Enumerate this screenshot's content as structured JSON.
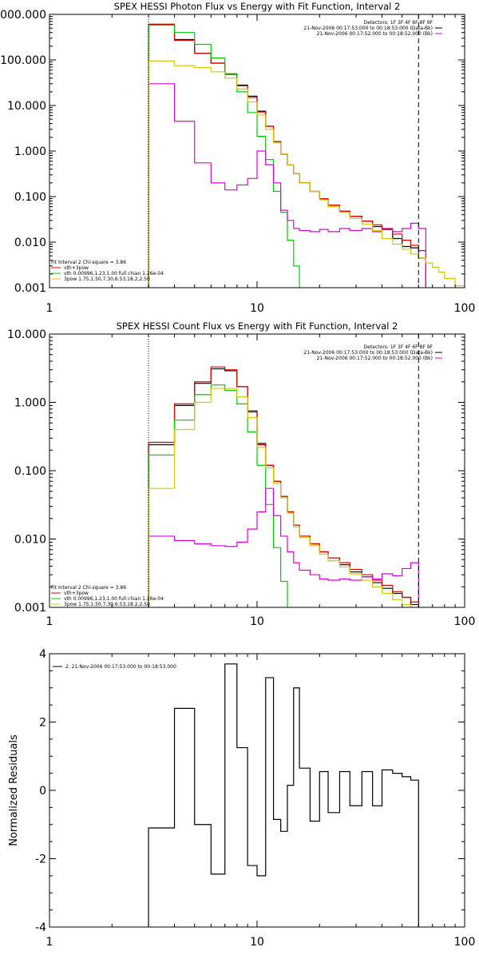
{
  "colors": {
    "black": "#000000",
    "red": "#e00000",
    "green": "#00cc00",
    "magenta": "#dd00dd",
    "yellow": "#d8c800"
  },
  "chart_data": [
    {
      "type": "line",
      "id": "photon",
      "title": "SPEX HESSI Photon Flux vs Energy with Fit Function, Interval 2",
      "xscale": "log",
      "yscale": "log",
      "xlim": [
        1,
        100
      ],
      "ylim": [
        0.001,
        1000
      ],
      "xticks": [
        {
          "v": 1,
          "label": "1"
        },
        {
          "v": 10,
          "label": "10"
        },
        {
          "v": 100,
          "label": "100"
        }
      ],
      "yticks": [
        {
          "v": 0.001,
          "label": "0.001"
        },
        {
          "v": 0.01,
          "label": "0.010"
        },
        {
          "v": 0.1,
          "label": "0.100"
        },
        {
          "v": 1,
          "label": "1.000"
        },
        {
          "v": 10,
          "label": "10.000"
        },
        {
          "v": 100,
          "label": "100.000"
        },
        {
          "v": 1000,
          "label": "1000.000"
        }
      ],
      "edges": [
        3,
        4,
        5,
        6,
        7,
        8,
        9,
        10,
        11,
        12,
        13,
        14,
        15,
        16,
        18,
        20,
        22,
        25,
        28,
        32,
        36,
        40,
        45,
        50,
        55,
        60,
        65,
        70,
        75,
        80,
        90,
        100
      ],
      "vlines": [
        {
          "x": 3,
          "style": "dotted"
        },
        {
          "x": 60,
          "style": "dashed"
        }
      ],
      "header": [
        "Detectors: 1F 3F 4F 6F 8F 9F",
        "21-Nov-2006 00:17:53.000 to 00:18:53.000 (Data-Bk)",
        "21-Nov-2006 00:17:52.000 to 00:18:52.000 (Bk)"
      ],
      "legend": [
        {
          "text": "Fit Interval  2   Chi-square = 3.86",
          "color": "black"
        },
        {
          "text": "vth+3pow",
          "color": "red"
        },
        {
          "text": "vth 0.00996,1.23,1.00  full chian 1.26e-04",
          "color": "green"
        },
        {
          "text": "3pow 1.75,1.50,7.30,6.53,18.2,2.50",
          "color": "yellow"
        }
      ],
      "series": [
        {
          "color": "black",
          "values": [
            600,
            280,
            140,
            85,
            50,
            28,
            16,
            7.5,
            3.5,
            1.6,
            0.85,
            0.5,
            0.32,
            0.2,
            0.13,
            0.09,
            0.065,
            0.048,
            0.037,
            0.029,
            0.022,
            0.019,
            0.012,
            0.008,
            0.0075,
            0.0045
          ]
        },
        {
          "color": "red",
          "values": [
            610,
            270,
            140,
            85,
            48,
            27,
            15,
            7.2,
            3.5,
            1.6,
            0.85,
            0.5,
            0.32,
            0.2,
            0.13,
            0.09,
            0.065,
            0.048,
            0.037,
            0.029,
            0.024,
            0.019,
            0.015,
            0.011,
            0.0085,
            0.0065
          ]
        },
        {
          "color": "green",
          "values": [
            580,
            400,
            220,
            110,
            50,
            20,
            7,
            2.1,
            0.65,
            0.13,
            0.045,
            0.011,
            0.003,
            0.0008
          ]
        },
        {
          "color": "magenta",
          "values": [
            30,
            4.5,
            0.55,
            0.2,
            0.14,
            0.18,
            0.25,
            1.0,
            0.5,
            0.2,
            0.05,
            0.03,
            0.02,
            0.018,
            0.017,
            0.019,
            0.017,
            0.02,
            0.018,
            0.02,
            0.017,
            0.02,
            0.017,
            0.02,
            0.026,
            0.02
          ]
        },
        {
          "color": "yellow",
          "values": [
            95,
            75,
            68,
            55,
            40,
            23,
            12,
            6.2,
            3.0,
            1.5,
            0.85,
            0.5,
            0.32,
            0.2,
            0.13,
            0.085,
            0.06,
            0.045,
            0.033,
            0.025,
            0.018,
            0.012,
            0.009,
            0.007,
            0.0055,
            0.0045,
            0.0035,
            0.0028,
            0.0022,
            0.0016,
            0.0011
          ]
        }
      ]
    },
    {
      "type": "line",
      "id": "count",
      "title": "SPEX HESSI Count Flux vs Energy with Fit Function, Interval 2",
      "xscale": "log",
      "yscale": "log",
      "xlim": [
        1,
        100
      ],
      "ylim": [
        0.001,
        10
      ],
      "xticks": [
        {
          "v": 1,
          "label": "1"
        },
        {
          "v": 10,
          "label": "10"
        },
        {
          "v": 100,
          "label": "100"
        }
      ],
      "yticks": [
        {
          "v": 0.001,
          "label": "0.001"
        },
        {
          "v": 0.01,
          "label": "0.010"
        },
        {
          "v": 0.1,
          "label": "0.100"
        },
        {
          "v": 1,
          "label": "1.000"
        },
        {
          "v": 10,
          "label": "10.000"
        }
      ],
      "edges": [
        3,
        4,
        5,
        6,
        7,
        8,
        9,
        10,
        11,
        12,
        13,
        14,
        15,
        16,
        18,
        20,
        22,
        25,
        28,
        32,
        36,
        40,
        45,
        50,
        55,
        60
      ],
      "vlines": [
        {
          "x": 3,
          "style": "dotted"
        },
        {
          "x": 60,
          "style": "dashed"
        }
      ],
      "header": [
        "Detectors: 1F 3F 4F 6F 8F 9F",
        "21-Nov-2006 00:17:53.000 to 00:18:53.000 (Data-Bk)",
        "21-Nov-2006 00:17:52.000 to 00:18:52.000 (Bk)"
      ],
      "legend": [
        {
          "text": "Fit Interval  2   Chi-square = 3.86",
          "color": "black"
        },
        {
          "text": "vth+3pow",
          "color": "red"
        },
        {
          "text": "vth 0.00996,1.23,1.00  full chian 1.26e-04",
          "color": "green"
        },
        {
          "text": "3pow 1.75,1.50,7.30,6.53,18.2,2.50",
          "color": "yellow"
        }
      ],
      "series": [
        {
          "color": "black",
          "values": [
            0.24,
            0.9,
            1.9,
            3.1,
            2.9,
            1.7,
            0.75,
            0.25,
            0.12,
            0.07,
            0.042,
            0.025,
            0.016,
            0.011,
            0.0085,
            0.0065,
            0.0053,
            0.0042,
            0.0033,
            0.0028,
            0.0023,
            0.0019,
            0.0016,
            0.0014,
            0.0011
          ]
        },
        {
          "color": "red",
          "values": [
            0.26,
            0.95,
            2.0,
            3.3,
            3.0,
            1.7,
            0.72,
            0.24,
            0.12,
            0.07,
            0.042,
            0.025,
            0.016,
            0.011,
            0.0085,
            0.0065,
            0.0053,
            0.0045,
            0.0036,
            0.003,
            0.0025,
            0.0021,
            0.0017,
            0.0014,
            0.0012
          ]
        },
        {
          "color": "green",
          "values": [
            0.17,
            0.55,
            1.3,
            1.8,
            1.5,
            0.95,
            0.37,
            0.12,
            0.032,
            0.0075,
            0.0024,
            0.00085,
            0.0003
          ]
        },
        {
          "color": "magenta",
          "values": [
            0.011,
            0.0095,
            0.0085,
            0.008,
            0.0078,
            0.009,
            0.014,
            0.025,
            0.055,
            0.022,
            0.011,
            0.0065,
            0.0045,
            0.0035,
            0.003,
            0.0026,
            0.0025,
            0.0026,
            0.0025,
            0.0028,
            0.0026,
            0.0031,
            0.0029,
            0.0037,
            0.0045
          ]
        },
        {
          "color": "yellow",
          "values": [
            0.055,
            0.4,
            1.0,
            1.6,
            1.6,
            1.2,
            0.6,
            0.22,
            0.11,
            0.065,
            0.04,
            0.024,
            0.015,
            0.0105,
            0.008,
            0.006,
            0.0048,
            0.0039,
            0.0031,
            0.0025,
            0.002,
            0.0016,
            0.0013,
            0.0011,
            0.0009
          ]
        }
      ]
    },
    {
      "type": "line",
      "id": "resid",
      "title": "",
      "xscale": "log",
      "yscale": "linear",
      "xlim": [
        1,
        100
      ],
      "ylim": [
        -4,
        4
      ],
      "ylabel": "Normalized Residuals",
      "xticks": [
        {
          "v": 1,
          "label": "1"
        },
        {
          "v": 10,
          "label": "10"
        },
        {
          "v": 100,
          "label": "100"
        }
      ],
      "yticks": [
        {
          "v": -4,
          "label": "-4"
        },
        {
          "v": -2,
          "label": "-2"
        },
        {
          "v": 0,
          "label": "0"
        },
        {
          "v": 2,
          "label": "2"
        },
        {
          "v": 4,
          "label": "4"
        }
      ],
      "edges": [
        3,
        4,
        5,
        6,
        7,
        8,
        9,
        10,
        11,
        12,
        13,
        14,
        15,
        16,
        18,
        20,
        22,
        25,
        28,
        32,
        36,
        40,
        45,
        50,
        55,
        60
      ],
      "vlines": [],
      "header": [],
      "legend": [
        {
          "text": "2. 21-Nov-2006 00:17:53.000 to 00:18:53.000",
          "color": "black"
        }
      ],
      "series": [
        {
          "color": "black",
          "values": [
            -1.1,
            2.4,
            -1.0,
            -2.45,
            3.7,
            1.25,
            -2.2,
            -2.5,
            3.3,
            -0.85,
            -1.2,
            0.15,
            3.0,
            0.65,
            -0.9,
            0.55,
            -0.65,
            0.55,
            -0.45,
            0.55,
            -0.45,
            0.6,
            0.5,
            0.4,
            0.3
          ]
        }
      ]
    }
  ]
}
